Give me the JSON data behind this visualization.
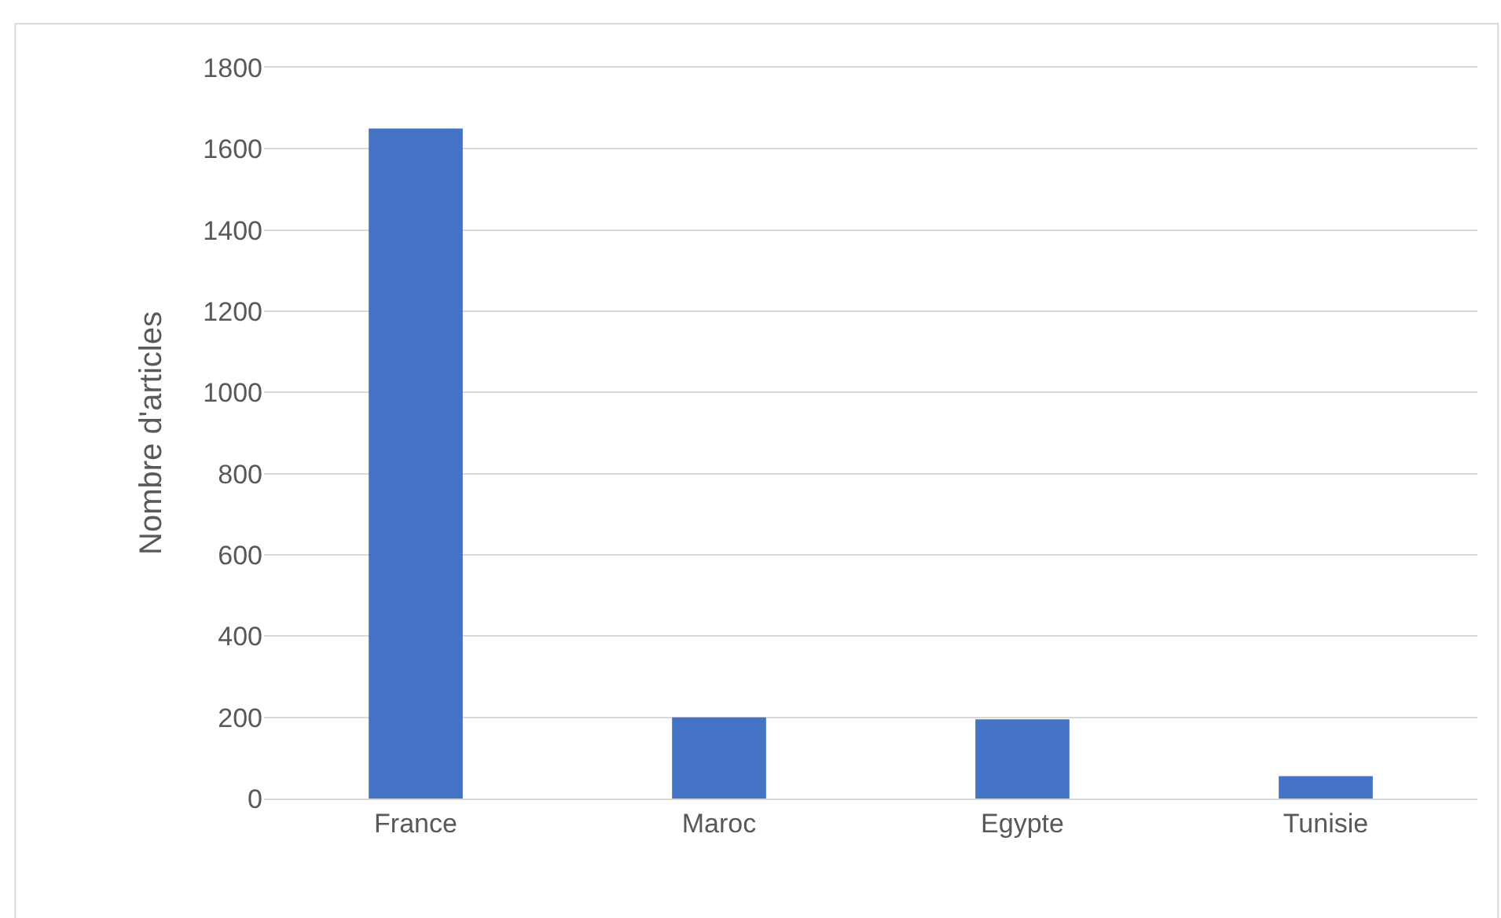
{
  "chart_data": {
    "type": "bar",
    "ylabel": "Nombre d'articles",
    "categories": [
      "France",
      "Maroc",
      "Egypte",
      "Tunisie"
    ],
    "values": [
      1650,
      200,
      195,
      55
    ],
    "color": "#4472c4",
    "ylim": [
      0,
      1800
    ],
    "yticks": [
      0,
      200,
      400,
      600,
      800,
      1000,
      1200,
      1400,
      1600,
      1800
    ],
    "grid": "y"
  }
}
